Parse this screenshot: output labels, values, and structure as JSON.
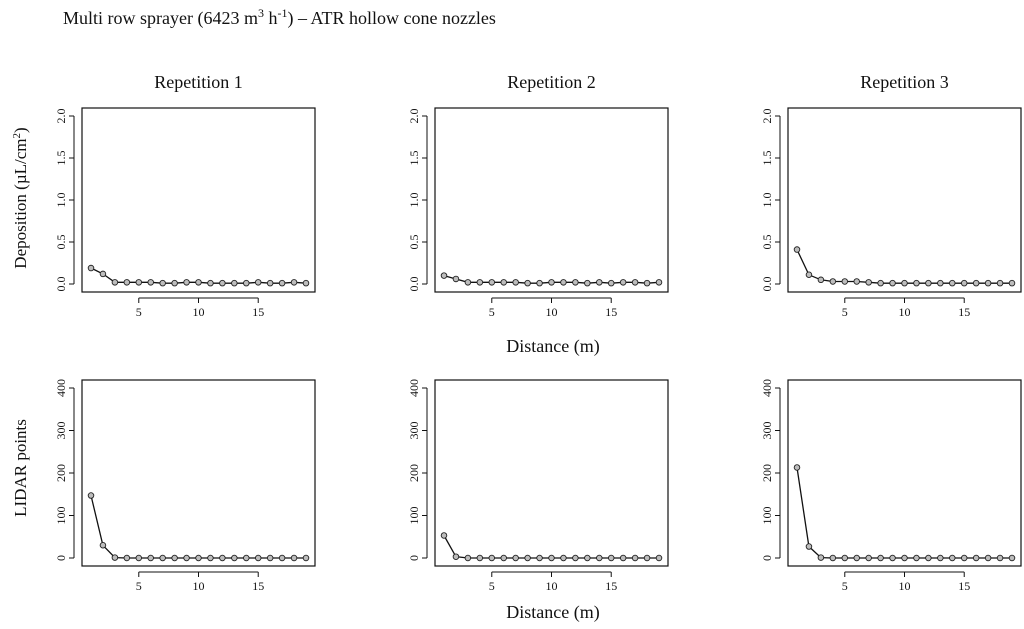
{
  "title_parts": {
    "prefix": "Multi row sprayer (6423 m",
    "sup1": "3",
    "mid": " h",
    "sup2": "-1",
    "suffix": ") – ATR hollow  cone nozzles"
  },
  "rows": {
    "top": {
      "ylabel_prefix": "Deposition  (µL/cm",
      "ylabel_sup": "2",
      "ylabel_suffix": ")",
      "xlabel": "Distance  (m)"
    },
    "bottom": {
      "ylabel": "LIDAR  points",
      "xlabel": "Distance  (m)"
    }
  },
  "chart_data": [
    {
      "type": "line",
      "panel": "top-1",
      "title": "Repetition  1",
      "x": [
        1,
        2,
        3,
        4,
        5,
        6,
        7,
        8,
        9,
        10,
        11,
        12,
        13,
        14,
        15,
        16,
        17,
        18,
        19
      ],
      "xlim": [
        1,
        19
      ],
      "xticks": [
        "5",
        "10",
        "15"
      ],
      "ylim": [
        0,
        2.0
      ],
      "yticks": [
        "0.0",
        "0.5",
        "1.0",
        "1.5",
        "2.0"
      ],
      "series": [
        {
          "values": [
            0.19,
            0.12,
            0.02,
            0.02,
            0.02,
            0.02,
            0.01,
            0.01,
            0.02,
            0.02,
            0.01,
            0.01,
            0.01,
            0.01,
            0.02,
            0.01,
            0.01,
            0.02,
            0.01
          ]
        }
      ]
    },
    {
      "type": "line",
      "panel": "top-2",
      "title": "Repetition  2",
      "x": [
        1,
        2,
        3,
        4,
        5,
        6,
        7,
        8,
        9,
        10,
        11,
        12,
        13,
        14,
        15,
        16,
        17,
        18,
        19
      ],
      "xlim": [
        1,
        19
      ],
      "xticks": [
        "5",
        "10",
        "15"
      ],
      "ylim": [
        0,
        2.0
      ],
      "yticks": [
        "0.0",
        "0.5",
        "1.0",
        "1.5",
        "2.0"
      ],
      "series": [
        {
          "values": [
            0.1,
            0.06,
            0.02,
            0.02,
            0.02,
            0.02,
            0.02,
            0.01,
            0.01,
            0.02,
            0.02,
            0.02,
            0.01,
            0.02,
            0.01,
            0.02,
            0.02,
            0.01,
            0.02
          ]
        }
      ]
    },
    {
      "type": "line",
      "panel": "top-3",
      "title": "Repetition  3",
      "x": [
        1,
        2,
        3,
        4,
        5,
        6,
        7,
        8,
        9,
        10,
        11,
        12,
        13,
        14,
        15,
        16,
        17,
        18,
        19
      ],
      "xlim": [
        1,
        19
      ],
      "xticks": [
        "5",
        "10",
        "15"
      ],
      "ylim": [
        0,
        2.0
      ],
      "yticks": [
        "0.0",
        "0.5",
        "1.0",
        "1.5",
        "2.0"
      ],
      "series": [
        {
          "values": [
            0.41,
            0.11,
            0.05,
            0.03,
            0.03,
            0.03,
            0.02,
            0.01,
            0.01,
            0.01,
            0.01,
            0.01,
            0.01,
            0.01,
            0.01,
            0.01,
            0.01,
            0.01,
            0.01
          ]
        }
      ]
    },
    {
      "type": "line",
      "panel": "bottom-1",
      "x": [
        1,
        2,
        3,
        4,
        5,
        6,
        7,
        8,
        9,
        10,
        11,
        12,
        13,
        14,
        15,
        16,
        17,
        18,
        19
      ],
      "xlim": [
        1,
        19
      ],
      "xticks": [
        "5",
        "10",
        "15"
      ],
      "ylim": [
        0,
        400
      ],
      "yticks": [
        "0",
        "100",
        "200",
        "300",
        "400"
      ],
      "series": [
        {
          "values": [
            147,
            30,
            1,
            0,
            0,
            0,
            0,
            0,
            0,
            0,
            0,
            0,
            0,
            0,
            0,
            0,
            0,
            0,
            0
          ]
        }
      ]
    },
    {
      "type": "line",
      "panel": "bottom-2",
      "x": [
        1,
        2,
        3,
        4,
        5,
        6,
        7,
        8,
        9,
        10,
        11,
        12,
        13,
        14,
        15,
        16,
        17,
        18,
        19
      ],
      "xlim": [
        1,
        19
      ],
      "xticks": [
        "5",
        "10",
        "15"
      ],
      "ylim": [
        0,
        400
      ],
      "yticks": [
        "0",
        "100",
        "200",
        "300",
        "400"
      ],
      "series": [
        {
          "values": [
            53,
            3,
            0,
            0,
            0,
            0,
            0,
            0,
            0,
            0,
            0,
            0,
            0,
            0,
            0,
            0,
            0,
            0,
            0
          ]
        }
      ]
    },
    {
      "type": "line",
      "panel": "bottom-3",
      "x": [
        1,
        2,
        3,
        4,
        5,
        6,
        7,
        8,
        9,
        10,
        11,
        12,
        13,
        14,
        15,
        16,
        17,
        18,
        19
      ],
      "xlim": [
        1,
        19
      ],
      "xticks": [
        "5",
        "10",
        "15"
      ],
      "ylim": [
        0,
        400
      ],
      "yticks": [
        "0",
        "100",
        "200",
        "300",
        "400"
      ],
      "series": [
        {
          "values": [
            213,
            27,
            1,
            0,
            0,
            0,
            0,
            0,
            0,
            0,
            0,
            0,
            0,
            0,
            0,
            0,
            0,
            0,
            0
          ]
        }
      ]
    }
  ]
}
